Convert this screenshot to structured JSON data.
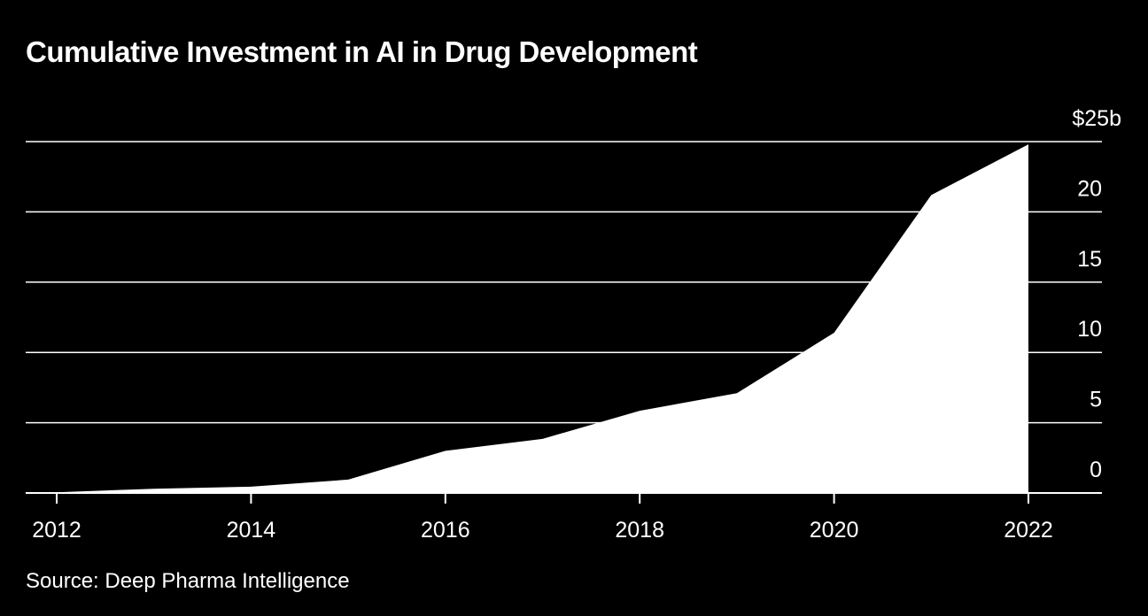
{
  "chart_data": {
    "type": "area",
    "title": "Cumulative Investment in AI in Drug Development",
    "source": "Source: Deep Pharma Intelligence",
    "xlabel": "",
    "ylabel": "",
    "x": [
      2012,
      2013,
      2014,
      2015,
      2016,
      2017,
      2018,
      2019,
      2020,
      2021,
      2022
    ],
    "values": [
      0.05,
      0.3,
      0.45,
      0.95,
      3.0,
      3.85,
      5.85,
      7.1,
      11.4,
      21.2,
      24.8
    ],
    "xlim": [
      2011.7,
      2022.7
    ],
    "ylim": [
      0,
      25
    ],
    "x_ticks": [
      2012,
      2014,
      2016,
      2018,
      2020,
      2022
    ],
    "x_tick_labels": [
      "2012",
      "2014",
      "2016",
      "2018",
      "2020",
      "2022"
    ],
    "y_ticks": [
      0,
      5,
      10,
      15,
      20,
      25
    ],
    "y_tick_labels": [
      "0",
      "5",
      "10",
      "15",
      "20",
      "$25b"
    ],
    "grid": true,
    "y_axis_side": "right"
  },
  "colors": {
    "background": "#000000",
    "foreground": "#ffffff",
    "area": "#ffffff"
  }
}
